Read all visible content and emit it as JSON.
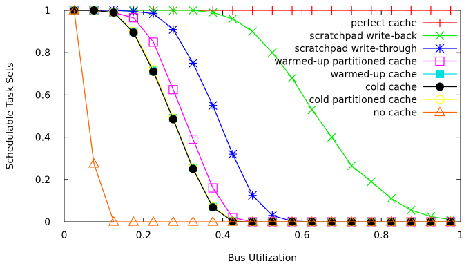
{
  "chart_data": {
    "type": "line",
    "title": "",
    "xlabel": "Bus Utilization",
    "ylabel": "Schedulable Task Sets",
    "xlim": [
      0,
      1
    ],
    "ylim": [
      0,
      1
    ],
    "xticks": [
      {
        "value": 0,
        "label": "0"
      },
      {
        "value": 0.2,
        "label": "0.2"
      },
      {
        "value": 0.4,
        "label": "0.4"
      },
      {
        "value": 0.6,
        "label": "0.6"
      },
      {
        "value": 0.8,
        "label": "0.8"
      },
      {
        "value": 1,
        "label": "1"
      }
    ],
    "yticks": [
      {
        "value": 0,
        "label": "0"
      },
      {
        "value": 0.2,
        "label": "0.2"
      },
      {
        "value": 0.4,
        "label": "0.4"
      },
      {
        "value": 0.6,
        "label": "0.6"
      },
      {
        "value": 0.8,
        "label": "0.8"
      },
      {
        "value": 1,
        "label": "1"
      }
    ],
    "grid": false,
    "legend_position": "top-right",
    "x": [
      0.025,
      0.075,
      0.125,
      0.175,
      0.225,
      0.275,
      0.325,
      0.375,
      0.425,
      0.475,
      0.525,
      0.575,
      0.625,
      0.675,
      0.725,
      0.775,
      0.825,
      0.875,
      0.925,
      0.975
    ],
    "series": [
      {
        "name": "perfect cache",
        "color": "#ff0000",
        "marker": "plus",
        "values": [
          1,
          1,
          1,
          1,
          1,
          1,
          1,
          1,
          1,
          1,
          1,
          1,
          1,
          1,
          1,
          1,
          1,
          1,
          1,
          1
        ]
      },
      {
        "name": "scratchpad write-back",
        "color": "#00ee00",
        "marker": "cross",
        "values": [
          1,
          1,
          1,
          1,
          1,
          1,
          1,
          0.99,
          0.96,
          0.9,
          0.8,
          0.68,
          0.53,
          0.4,
          0.265,
          0.19,
          0.11,
          0.055,
          0.025,
          0.01
        ]
      },
      {
        "name": "scratchpad write-through",
        "color": "#0000ff",
        "marker": "star",
        "values": [
          1,
          1,
          1,
          0.995,
          0.985,
          0.91,
          0.75,
          0.55,
          0.32,
          0.125,
          0.03,
          0.003,
          0,
          0,
          0,
          0,
          0,
          0,
          0,
          0
        ]
      },
      {
        "name": "warmed-up partitioned cache",
        "color": "#ff00ff",
        "marker": "square-open",
        "values": [
          1,
          1,
          0.99,
          0.965,
          0.85,
          0.625,
          0.39,
          0.16,
          0.02,
          0,
          0,
          0,
          0,
          0,
          0,
          0,
          0,
          0,
          0,
          0
        ]
      },
      {
        "name": "warmed-up cache",
        "color": "#00e0e0",
        "marker": "square-filled",
        "values": [
          1,
          1,
          0.99,
          0.9,
          0.715,
          0.49,
          0.255,
          0.07,
          0.003,
          0,
          0,
          0,
          0,
          0,
          0,
          0,
          0,
          0,
          0,
          0
        ]
      },
      {
        "name": "cold cache",
        "color": "#000000",
        "marker": "circle-filled",
        "values": [
          1,
          1,
          0.99,
          0.895,
          0.71,
          0.485,
          0.25,
          0.068,
          0.002,
          0,
          0,
          0,
          0,
          0,
          0,
          0,
          0,
          0,
          0,
          0
        ]
      },
      {
        "name": "cold partitioned cache",
        "color": "#ffff00",
        "marker": "circle-open",
        "values": [
          1,
          1,
          0.99,
          0.9,
          0.72,
          0.49,
          0.255,
          0.072,
          0.003,
          0,
          0,
          0,
          0,
          0,
          0,
          0,
          0,
          0,
          0,
          0
        ]
      },
      {
        "name": "no cache",
        "color": "#ff6600",
        "marker": "triangle-open",
        "values": [
          1,
          0.275,
          0,
          0,
          0,
          0,
          0,
          0,
          0,
          0,
          0,
          0,
          0,
          0,
          0,
          0,
          0,
          0,
          0,
          0
        ]
      }
    ]
  }
}
